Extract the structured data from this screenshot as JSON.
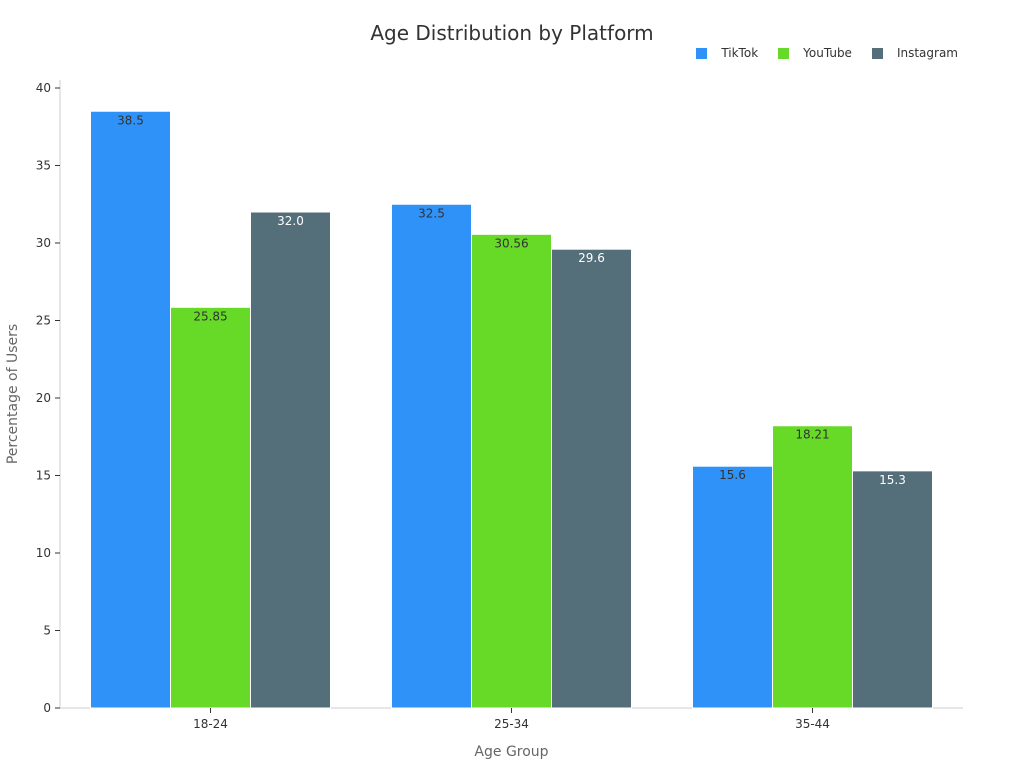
{
  "chart_data": {
    "type": "bar",
    "title": "Age Distribution by Platform",
    "xlabel": "Age Group",
    "ylabel": "Percentage of Users",
    "categories": [
      "18-24",
      "25-34",
      "35-44"
    ],
    "series": [
      {
        "name": "TikTok",
        "values": [
          38.5,
          32.5,
          15.6
        ],
        "labels": [
          "38.5",
          "32.5",
          "15.6"
        ],
        "color": "#2F92F8",
        "label_color": "#333333"
      },
      {
        "name": "YouTube",
        "values": [
          25.85,
          30.56,
          18.21
        ],
        "labels": [
          "25.85",
          "30.56",
          "18.21"
        ],
        "color": "#66DA26",
        "label_color": "#333333"
      },
      {
        "name": "Instagram",
        "values": [
          32.0,
          29.6,
          15.3
        ],
        "labels": [
          "32.0",
          "29.6",
          "15.3"
        ],
        "color": "#546E7A",
        "label_color": "#ffffff"
      }
    ],
    "ylim": [
      0,
      40
    ],
    "yticks": [
      "0",
      "5",
      "10",
      "15",
      "20",
      "25",
      "30",
      "35",
      "40"
    ],
    "grid": false,
    "legend_position": "top-right"
  }
}
